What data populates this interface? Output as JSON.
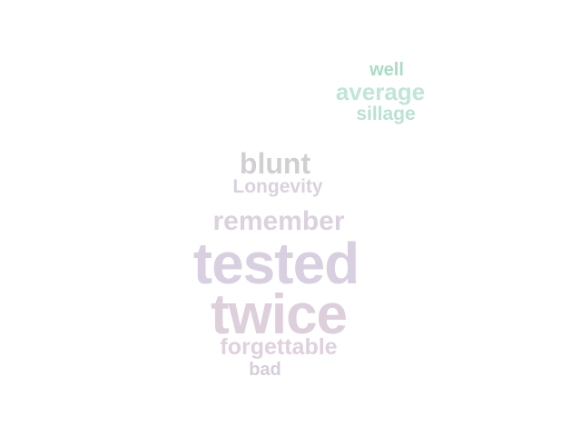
{
  "words": [
    {
      "text": "well",
      "color": "#a9dcc4"
    },
    {
      "text": "average",
      "color": "#bfe6d6"
    },
    {
      "text": "sillage",
      "color": "#b9e2d2"
    },
    {
      "text": "blunt",
      "color": "#d2cfd3"
    },
    {
      "text": "Longevity",
      "color": "#d9d2de"
    },
    {
      "text": "remember",
      "color": "#dcd1df"
    },
    {
      "text": "tested",
      "color": "#d8d0e0"
    },
    {
      "text": "twice",
      "color": "#ddcfdb"
    },
    {
      "text": "forgettable",
      "color": "#dfd1de"
    },
    {
      "text": "bad",
      "color": "#d6ced8"
    }
  ]
}
